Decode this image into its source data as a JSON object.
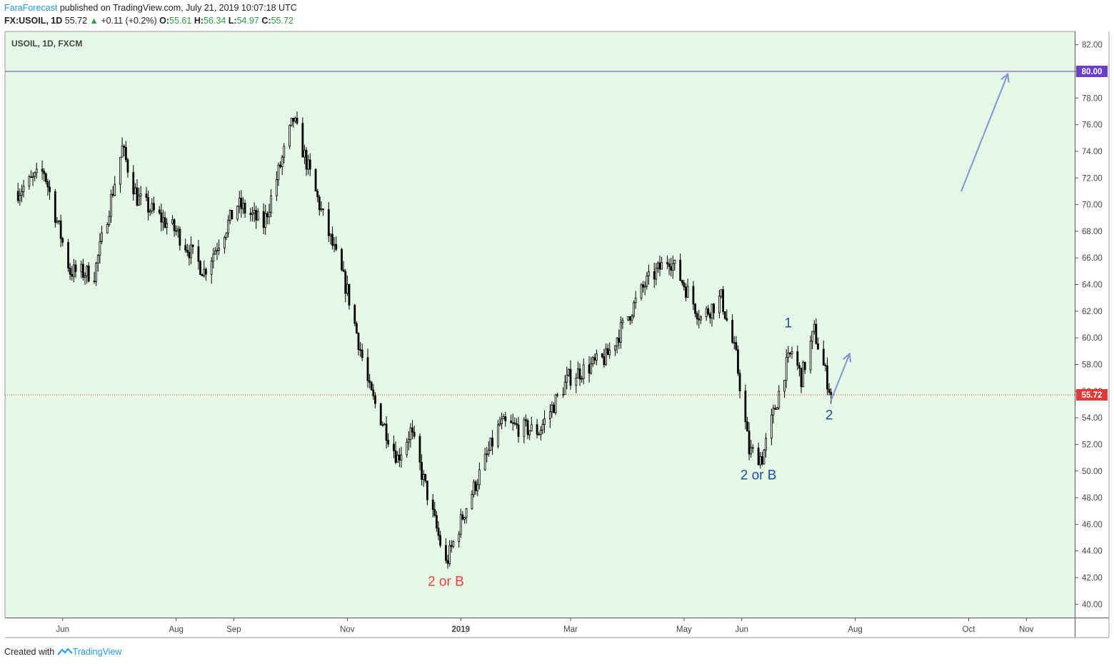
{
  "header": {
    "author": "FaraForecast",
    "published": "published on TradingView.com, July 21, 2019 10:07:18 UTC",
    "symbol_interval": "FX:USOIL, 1D",
    "last": "55.72",
    "change": "+0.11 (+0.2%)",
    "o_label": "O:",
    "o_value": "55.61",
    "h_label": "H:",
    "h_value": "56.34",
    "l_label": "L:",
    "l_value": "54.97",
    "c_label": "C:",
    "c_value": "55.72"
  },
  "footer": {
    "created": "Created with",
    "brand": "TradingView"
  },
  "chart_data": {
    "type": "candlestick",
    "title": "USOIL, 1D, FXCM",
    "ylim": [
      39,
      83
    ],
    "y_ticks": [
      "40.00",
      "42.00",
      "44.00",
      "46.00",
      "48.00",
      "50.00",
      "52.00",
      "54.00",
      "56.00",
      "58.00",
      "60.00",
      "62.00",
      "64.00",
      "66.00",
      "68.00",
      "70.00",
      "72.00",
      "74.00",
      "76.00",
      "78.00",
      "80.00",
      "82.00"
    ],
    "x_ticks": [
      {
        "label": "Jun",
        "date": "2018-06-01"
      },
      {
        "label": "Aug",
        "date": "2018-08-01"
      },
      {
        "label": "Sep",
        "date": "2018-09-01"
      },
      {
        "label": "Nov",
        "date": "2018-11-01"
      },
      {
        "label": "2019",
        "date": "2019-01-01"
      },
      {
        "label": "Mar",
        "date": "2019-03-01"
      },
      {
        "label": "May",
        "date": "2019-05-01"
      },
      {
        "label": "Jun",
        "date": "2019-06-01"
      },
      {
        "label": "Aug",
        "date": "2019-08-01"
      },
      {
        "label": "Oct",
        "date": "2019-10-01"
      },
      {
        "label": "Nov",
        "date": "2019-11-01"
      }
    ],
    "key_points": [
      {
        "date": "2018-05-08",
        "close": 71.0
      },
      {
        "date": "2018-05-22",
        "close": 72.5
      },
      {
        "date": "2018-06-05",
        "close": 65.0
      },
      {
        "date": "2018-06-18",
        "close": 64.8
      },
      {
        "date": "2018-07-03",
        "close": 74.2
      },
      {
        "date": "2018-07-11",
        "close": 70.5
      },
      {
        "date": "2018-08-01",
        "close": 68.0
      },
      {
        "date": "2018-08-16",
        "close": 65.0
      },
      {
        "date": "2018-09-03",
        "close": 70.0
      },
      {
        "date": "2018-09-17",
        "close": 68.5
      },
      {
        "date": "2018-10-03",
        "close": 76.4
      },
      {
        "date": "2018-10-18",
        "close": 69.5
      },
      {
        "date": "2018-11-01",
        "close": 63.5
      },
      {
        "date": "2018-11-13",
        "close": 56.0
      },
      {
        "date": "2018-11-28",
        "close": 51.0
      },
      {
        "date": "2018-12-05",
        "close": 53.0
      },
      {
        "date": "2018-12-24",
        "close": 43.0
      },
      {
        "date": "2019-01-03",
        "close": 47.0
      },
      {
        "date": "2019-01-22",
        "close": 53.5
      },
      {
        "date": "2019-02-12",
        "close": 53.0
      },
      {
        "date": "2019-02-28",
        "close": 57.0
      },
      {
        "date": "2019-03-20",
        "close": 58.5
      },
      {
        "date": "2019-04-10",
        "close": 64.0
      },
      {
        "date": "2019-04-23",
        "close": 66.0
      },
      {
        "date": "2019-05-01",
        "close": 64.0
      },
      {
        "date": "2019-05-10",
        "close": 61.5
      },
      {
        "date": "2019-05-21",
        "close": 63.0
      },
      {
        "date": "2019-05-29",
        "close": 58.5
      },
      {
        "date": "2019-06-05",
        "close": 51.5
      },
      {
        "date": "2019-06-12",
        "close": 51.0
      },
      {
        "date": "2019-06-24",
        "close": 57.5
      },
      {
        "date": "2019-06-28",
        "close": 59.0
      },
      {
        "date": "2019-07-03",
        "close": 57.0
      },
      {
        "date": "2019-07-10",
        "close": 60.5
      },
      {
        "date": "2019-07-17",
        "close": 56.8
      },
      {
        "date": "2019-07-19",
        "close": 55.72
      }
    ],
    "hlines": [
      {
        "value": 80.0,
        "label": "80.00",
        "color": "#6a3fc9"
      },
      {
        "value": 55.72,
        "label": "55.72",
        "color": "#e53935",
        "style": "dotted"
      }
    ],
    "annotations": [
      {
        "text": "2 or B",
        "color": "#f44336",
        "date": "2018-12-24",
        "y": 41.7
      },
      {
        "text": "2 or B",
        "color": "#1e4fa3",
        "date": "2019-06-10",
        "y": 49.7
      },
      {
        "text": "1",
        "color": "#1e4fa3",
        "date": "2019-06-26",
        "y": 61.1
      },
      {
        "text": "2",
        "color": "#1e4fa3",
        "date": "2019-07-18",
        "y": 54.2
      }
    ],
    "arrows": [
      {
        "from": {
          "date": "2019-07-19",
          "y": 55.3
        },
        "to": {
          "date": "2019-07-29",
          "y": 58.8
        },
        "color": "#7e97d4"
      },
      {
        "from": {
          "date": "2019-09-27",
          "y": 71.0
        },
        "to": {
          "date": "2019-10-22",
          "y": 79.8
        },
        "color": "#7e97d4"
      }
    ],
    "colors": {
      "background": "#e5f7e5",
      "candle": "#000000",
      "axis_text": "#444444"
    },
    "grid": false
  }
}
